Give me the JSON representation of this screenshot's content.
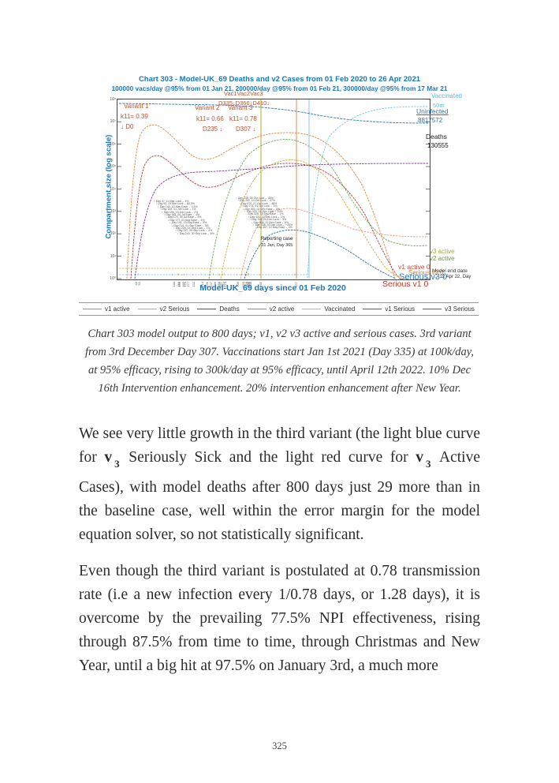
{
  "page": {
    "number": "325"
  },
  "chart": {
    "title": "Chart 303 - Model-UK_69 Deaths and v2 Cases from 01 Feb 2020 to 26 Apr 2021",
    "subtitle": "100000 vacs/day @95% from 01 Jan 21, 200000/day @95% from 01 Feb 21, 300000/day @95% from 17 Mar 21",
    "ylabel": "Compartment size (log scale)",
    "xlabel": "Model-UK_69 days since 01 Feb 2020",
    "variant_labels": {
      "v1_name": "Variant 1",
      "v1_k": "k11= 0.39",
      "v1_day": "↓ D0",
      "v2_name": "Variant 2",
      "v2_k": "k11= 0.66",
      "v2_day": "D235 ↓",
      "v3_name": "Variant 3",
      "v3_k": "k11= 0.78",
      "v3_day": "D307 ↓",
      "vac_names": "Vac1Vac2Vac3",
      "vac_days": "D335↓D366↓D410↓"
    },
    "reporting_case": {
      "line1": "Reporting case",
      "line2": "↓ 31 Jan, Day 365"
    },
    "side_labels": [
      {
        "id": "vaccinated",
        "text": "Vaccinated",
        "value": "50m"
      },
      {
        "id": "uninfected",
        "text": "Uninfected",
        "value": "8817572"
      },
      {
        "id": "deaths",
        "text": "Deaths",
        "value": "130555"
      },
      {
        "id": "v3-active",
        "text": "v3 active"
      },
      {
        "id": "v2-active",
        "text": "v2 active"
      },
      {
        "id": "v1-active",
        "text": "v1 active 0"
      },
      {
        "id": "serious-v2",
        "text": "Serious v2 0"
      },
      {
        "id": "serious-v3",
        "text": "Serious v3 0"
      },
      {
        "id": "serious-v1",
        "text": "Serious v1 0"
      },
      {
        "id": "model-end",
        "text": "Model end date",
        "value": "→ 12 Apr 22, Day"
      }
    ],
    "annotations_col1": [
      "↑ Day 47, 14 Mar Lock→ 4%",
      "↑ Day 52, 23 Mar Lock→ 84.3%",
      "↓ Day 140, 10 May Ease→ 0.3%",
      "↑ Day 153, 01 Jun Lock→ 1%",
      "↑ Day 156, 15 Jun Lock→ 1%",
      "↓ Day 165, 04 Jul Ease→ 4%",
      "↓ Day 170, 05 Jul Ease→ 5%",
      "↓ Day 177, 01 Aug Ease→ 4%",
      "↓ Day 192, 15 Aug Ease→ 3%",
      "↓ Day 214, 01 Sep Ease→ 3%",
      "↑ Day 226, 14 Sep Lock→ 1%",
      "↑ Day 237, 25 Sep Lock→ 4%",
      "↑ Day 243, 30 Sep Lock→ 6%"
    ],
    "annotations_col2": [
      "↑ Day 248, 05 Oct Lock→ 45%",
      "↑ Day 252, 14 Oct Lock→ 47%",
      "↑ Day 270, 27 Oct Lock→ 48%",
      "↑ Day 274, 31 Oct Lock→ 1%",
      "↓ Day 306, 02 Dec Ease→ 6%",
      "↑ Day 320, 16 Dec Lock→ 10%",
      "↓ Day 328, 18 Dec Ease→ 1%",
      "↑ Day 331, 21 Dec Lock→ 1%",
      "↑ Day 332, 20 Dec Lock→ 5%",
      "↓ Day 336, 31 Dec Ease→ 5%",
      "↑ Day 338, 03 Jan Lock→ +25%",
      "↓ Day 457, 12 May Ease→ 4%"
    ],
    "ytick_labels": [
      "10⁸",
      "10⁷",
      "10⁶",
      "10⁵",
      "10⁴",
      "10³",
      "10²",
      "10¹",
      "10⁰"
    ],
    "xtick_days": [
      "43",
      "52",
      "140",
      "153",
      "156",
      "165",
      "170",
      "177",
      "192",
      "214",
      "226",
      "237",
      "246",
      "258",
      "262",
      "270",
      "274",
      "306",
      "320",
      "328",
      "332",
      "335",
      "338",
      "365",
      "457"
    ],
    "legend": [
      {
        "label": "v1 active",
        "color": "#e0823c"
      },
      {
        "label": "v2 Serious",
        "color": "#c9b03a"
      },
      {
        "label": "Deaths",
        "color": "#7b3294"
      },
      {
        "label": "v2 active",
        "color": "#6aa84f"
      },
      {
        "label": "Vaccinated",
        "color": "#7ec8e3"
      },
      {
        "label": "v1 Serious",
        "color": "#b03a3a"
      },
      {
        "label": "v3 Serious",
        "color": "#2e6e9e"
      }
    ]
  },
  "chart_data": {
    "type": "line",
    "title": "Chart 303 - Model-UK_69 Deaths and v2 Cases from 01 Feb 2020 to 26 Apr 2021",
    "xlabel": "Model-UK_69 days since 01 Feb 2020",
    "ylabel": "Compartment size (log scale)",
    "x_range": [
      0,
      800
    ],
    "y_scale": "log",
    "y_range": [
      1,
      100000000
    ],
    "grid": false,
    "legend_position": "bottom",
    "key_values": {
      "Vaccinated": "50m",
      "Uninfected": "8817572",
      "Deaths": "130555"
    },
    "events": [
      "D0: Variant 1 k11=0.39",
      "D235: Variant 2 k11=0.66",
      "D307: Variant 3 k11=0.78",
      "Vac1 D335, Vac2 D366, Vac3 D410",
      "Reporting case: 31 Jan, Day 365",
      "Model end date: 12 Apr 22"
    ],
    "series": [
      {
        "name": "Uninfected",
        "color": "#2e75b6",
        "approx_points": [
          [
            0,
            66000000
          ],
          [
            300,
            45000000
          ],
          [
            520,
            15000000
          ],
          [
            800,
            8817572
          ]
        ]
      },
      {
        "name": "Vaccinated",
        "color": "#7ec8e3",
        "approx_points": [
          [
            335,
            1
          ],
          [
            450,
            5000000
          ],
          [
            600,
            30000000
          ],
          [
            800,
            50000000
          ]
        ]
      },
      {
        "name": "v1 active",
        "color": "#e0823c",
        "approx_points": [
          [
            30,
            100
          ],
          [
            60,
            5000000
          ],
          [
            120,
            150000
          ],
          [
            230,
            400000
          ],
          [
            390,
            2500000
          ],
          [
            520,
            300000
          ],
          [
            620,
            1
          ]
        ]
      },
      {
        "name": "v1 Serious",
        "color": "#b03a3a",
        "approx_points": [
          [
            35,
            10
          ],
          [
            65,
            200000
          ],
          [
            125,
            8000
          ],
          [
            240,
            20000
          ],
          [
            400,
            120000
          ],
          [
            640,
            1
          ]
        ]
      },
      {
        "name": "Deaths",
        "color": "#7b3294",
        "approx_points": [
          [
            40,
            100
          ],
          [
            90,
            30000
          ],
          [
            200,
            60000
          ],
          [
            350,
            110000
          ],
          [
            800,
            130555
          ]
        ]
      },
      {
        "name": "v2 active",
        "color": "#6aa84f",
        "approx_points": [
          [
            235,
            1
          ],
          [
            330,
            1500000
          ],
          [
            420,
            2000000
          ],
          [
            520,
            10000
          ],
          [
            800,
            50
          ]
        ]
      },
      {
        "name": "v2 Serious",
        "color": "#c9b03a",
        "approx_points": [
          [
            260,
            1
          ],
          [
            360,
            60000
          ],
          [
            440,
            80000
          ],
          [
            560,
            100
          ],
          [
            740,
            1
          ]
        ]
      },
      {
        "name": "v3 active",
        "color": "#e89a8a",
        "approx_points": [
          [
            307,
            1
          ],
          [
            380,
            300
          ],
          [
            500,
            400
          ],
          [
            800,
            30
          ]
        ]
      },
      {
        "name": "v3 Serious",
        "color": "#2e6e9e",
        "approx_points": [
          [
            307,
            1
          ],
          [
            400,
            60
          ],
          [
            520,
            30
          ],
          [
            720,
            1
          ]
        ]
      }
    ]
  },
  "caption": "Chart 303 model output to 800 days; v1, v2 v3 active and serious cases. 3rd variant from 3rd December Day 307. Vaccinations start Jan 1st 2021 (Day 335) at 100k/day, at 95% efficacy, rising to 300k/day at 95% efficacy, until April 12th 2022. 10% Dec 16th Intervention enhancement. 20% intervention enhancement after New Year.",
  "paragraphs": [
    [
      {
        "t": "We see very little growth in the third variant (the light blue curve for "
      },
      {
        "t": "v",
        "b": true
      },
      {
        "t": "3",
        "b": true,
        "sub": true
      },
      {
        "t": " Seriously Sick and the light red curve for "
      },
      {
        "t": "v",
        "b": true
      },
      {
        "t": "3",
        "b": true,
        "sub": true
      },
      {
        "t": " Active Cases), with model deaths after 800 days just 29 more than in the baseline case, well within the error margin for the model equation solver, so not statistically significant."
      }
    ],
    [
      {
        "t": "Even though the third variant is postulated at 0.78 transmission rate (i.e a new infection every 1/0.78 days, or 1.28 days), it is overcome by the prevailing 77.5% NPI effectiveness, rising through 87.5% from time to time, through Christmas and New Year, until a big hit at 97.5% on January 3rd, a much more"
      }
    ]
  ]
}
